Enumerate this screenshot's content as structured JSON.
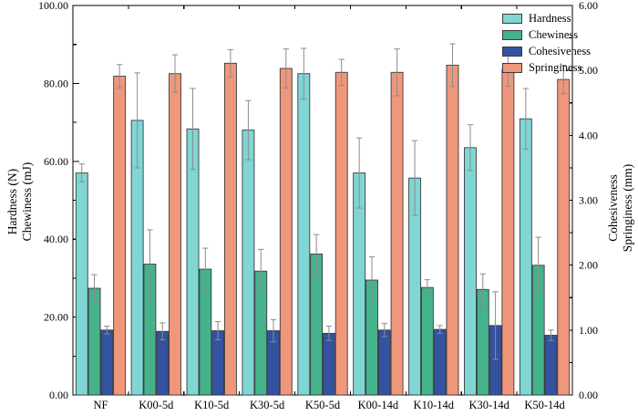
{
  "figure_title": "",
  "chart_data": {
    "type": "bar",
    "categories": [
      "NF",
      "K00-5d",
      "K10-5d",
      "K30-5d",
      "K50-5d",
      "K00-14d",
      "K10-14d",
      "K30-14d",
      "K50-14d"
    ],
    "series": [
      {
        "name": "Hardness",
        "axis": "left",
        "color": "#7FD6D3",
        "values": [
          57.0,
          70.5,
          68.3,
          68.0,
          82.5,
          57.0,
          55.7,
          63.5,
          70.9
        ],
        "errors": [
          2.3,
          12.2,
          10.4,
          7.6,
          6.5,
          9.0,
          9.6,
          5.9,
          7.8
        ]
      },
      {
        "name": "Chewiness",
        "axis": "left",
        "color": "#45B28B",
        "values": [
          27.4,
          33.6,
          32.3,
          31.8,
          36.2,
          29.5,
          27.6,
          27.1,
          33.3
        ],
        "errors": [
          3.5,
          8.8,
          5.4,
          5.6,
          5.0,
          6.0,
          2.0,
          4.0,
          7.2
        ]
      },
      {
        "name": "Cohesiveness",
        "axis": "right",
        "color": "#33529F",
        "values": [
          1.0,
          0.98,
          0.99,
          0.99,
          0.95,
          1.0,
          1.01,
          1.07,
          0.92
        ],
        "errors": [
          0.06,
          0.13,
          0.14,
          0.17,
          0.11,
          0.1,
          0.06,
          0.52,
          0.08
        ]
      },
      {
        "name": "Springiness",
        "axis": "right",
        "color": "#EF977A",
        "values": [
          4.91,
          4.95,
          5.11,
          5.03,
          4.97,
          4.97,
          5.08,
          5.01,
          4.86
        ],
        "errors": [
          0.18,
          0.29,
          0.21,
          0.3,
          0.2,
          0.36,
          0.33,
          0.25,
          0.22
        ]
      }
    ],
    "left_axis": {
      "label_line1": "Hardness (N)",
      "label_line2": "Chewiness (mJ)",
      "min": 0,
      "max": 100,
      "major_step": 20,
      "minor_step": 10,
      "tick_labels": [
        "0.00",
        "20.00",
        "40.00",
        "60.00",
        "80.00",
        "100.00"
      ]
    },
    "right_axis": {
      "label_line1": "Cohesiveness",
      "label_line2": "Springiness (mm)",
      "min": 0,
      "max": 6,
      "major_step": 1,
      "minor_step": 0.5,
      "tick_labels": [
        "0.00",
        "1.00",
        "2.00",
        "3.00",
        "4.00",
        "5.00",
        "6.00"
      ]
    },
    "legend": {
      "position": "top-right",
      "entries": [
        "Hardness",
        "Chewiness",
        "Cohesiveness",
        "Springiness"
      ]
    },
    "grid": false,
    "colors": {
      "bar_stroke": "#3b3b3b",
      "error_bar": "#8c8c8c",
      "axis": "#000000"
    }
  }
}
